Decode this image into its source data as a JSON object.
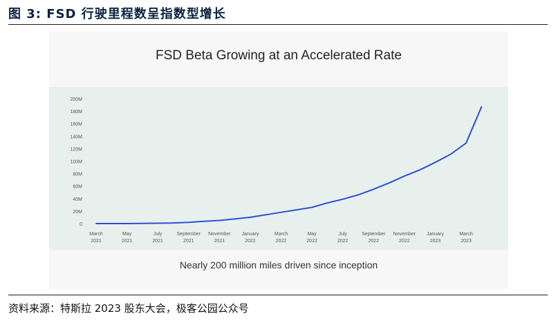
{
  "figure": {
    "label": "图 3:",
    "title": "FSD 行驶里程数呈指数型增长"
  },
  "source": "资料来源：特斯拉 2023 股东大会，极客公园公众号",
  "chart_data": {
    "type": "line",
    "title": "FSD Beta Growing at an Accelerated Rate",
    "caption": "Nearly 200 million miles driven since inception",
    "xlabel": "",
    "ylabel": "",
    "ylim": [
      0,
      200
    ],
    "y_unit": "M",
    "yticks": [
      "0",
      "20M",
      "40M",
      "60M",
      "80M",
      "100M",
      "120M",
      "140M",
      "160M",
      "180M",
      "200M"
    ],
    "xticks": [
      {
        "m": 0,
        "l1": "March",
        "l2": "2021"
      },
      {
        "m": 2,
        "l1": "May",
        "l2": "2021"
      },
      {
        "m": 4,
        "l1": "July",
        "l2": "2021"
      },
      {
        "m": 6,
        "l1": "September",
        "l2": "2021"
      },
      {
        "m": 8,
        "l1": "November",
        "l2": "2021"
      },
      {
        "m": 10,
        "l1": "January",
        "l2": "2022"
      },
      {
        "m": 12,
        "l1": "March",
        "l2": "2022"
      },
      {
        "m": 14,
        "l1": "May",
        "l2": "2022"
      },
      {
        "m": 16,
        "l1": "July",
        "l2": "2022"
      },
      {
        "m": 18,
        "l1": "September",
        "l2": "2022"
      },
      {
        "m": 20,
        "l1": "November",
        "l2": "2022"
      },
      {
        "m": 22,
        "l1": "January",
        "l2": "2023"
      },
      {
        "m": 24,
        "l1": "March",
        "l2": "2023"
      }
    ],
    "grid": false,
    "color": "#2a4fd6",
    "series": [
      {
        "x": [
          0,
          1,
          2,
          3,
          4,
          5,
          6,
          7,
          8,
          9,
          10,
          11,
          12,
          13,
          14,
          15,
          16,
          17,
          18,
          19,
          20,
          21,
          22,
          23,
          24,
          25
        ],
        "values": [
          0,
          0,
          0,
          0.2,
          0.5,
          1,
          2,
          3.5,
          5,
          7.5,
          10,
          14,
          18,
          22,
          26,
          33,
          39,
          46,
          55,
          65,
          76,
          86,
          98,
          111,
          129,
          187
        ]
      }
    ]
  }
}
